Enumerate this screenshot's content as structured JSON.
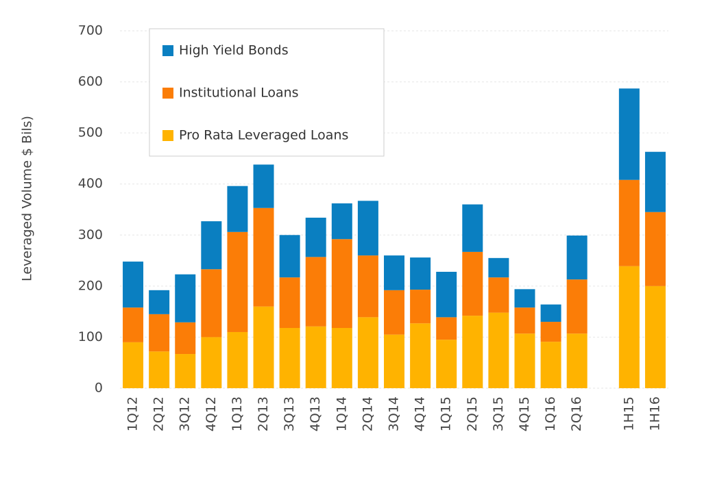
{
  "chart_data": {
    "type": "stacked_bar",
    "y_label": "Leveraged Volume $ Bils)",
    "categories": [
      "1Q12",
      "2Q12",
      "3Q12",
      "4Q12",
      "1Q13",
      "2Q13",
      "3Q13",
      "4Q13",
      "1Q14",
      "2Q14",
      "3Q14",
      "4Q14",
      "1Q15",
      "2Q15",
      "3Q15",
      "4Q15",
      "1Q16",
      "2Q16",
      null,
      "1H15",
      "1H16"
    ],
    "series": [
      {
        "name": "Pro Rata Leveraged Loans",
        "color": "#ffb300",
        "values": [
          90,
          72,
          67,
          100,
          110,
          160,
          118,
          121,
          118,
          139,
          105,
          127,
          95,
          142,
          148,
          107,
          91,
          107,
          null,
          239,
          200
        ]
      },
      {
        "name": "Institutional Loans",
        "color": "#fb7d07",
        "values": [
          68,
          73,
          62,
          133,
          196,
          193,
          99,
          136,
          174,
          121,
          87,
          66,
          44,
          125,
          69,
          51,
          39,
          106,
          null,
          169,
          145
        ]
      },
      {
        "name": "High Yield Bonds",
        "color": "#0a7fc1",
        "values": [
          90,
          47,
          94,
          94,
          90,
          85,
          83,
          77,
          70,
          107,
          68,
          63,
          89,
          93,
          38,
          36,
          34,
          86,
          null,
          179,
          118
        ]
      }
    ],
    "legend_order": "reversed",
    "ylim": [
      0,
      700
    ],
    "yticks": [
      0,
      100,
      200,
      300,
      400,
      500,
      600,
      700
    ],
    "grid": true
  }
}
